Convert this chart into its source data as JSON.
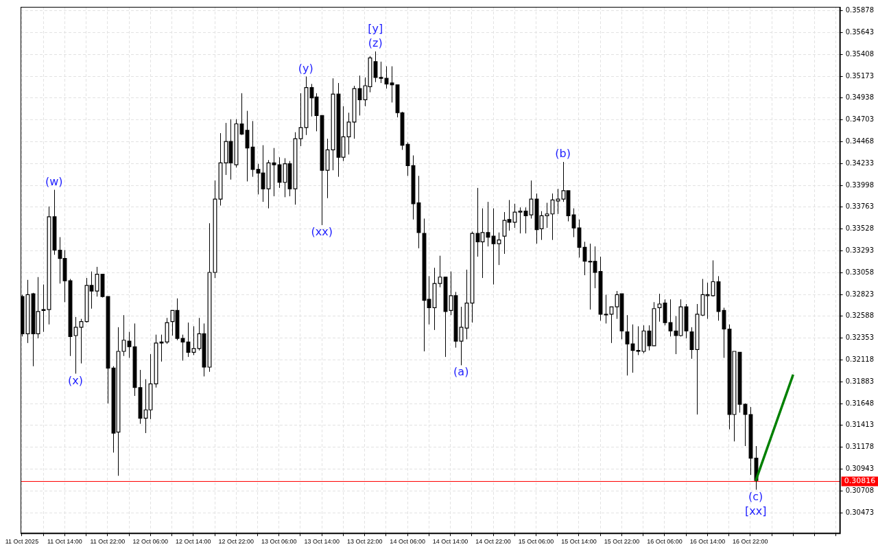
{
  "chart_data": {
    "type": "candlestick",
    "x": [
      "2025-10-11T06:00",
      "2025-10-11T07:00",
      "2025-10-11T08:00",
      "2025-10-11T09:00",
      "2025-10-11T10:00",
      "2025-10-11T11:00",
      "2025-10-11T12:00",
      "2025-10-11T13:00",
      "2025-10-11T14:00",
      "2025-10-11T15:00",
      "2025-10-11T16:00",
      "2025-10-11T17:00",
      "2025-10-11T18:00",
      "2025-10-11T19:00",
      "2025-10-11T20:00",
      "2025-10-11T21:00",
      "2025-10-11T22:00",
      "2025-10-11T23:00",
      "2025-10-12T00:00",
      "2025-10-12T01:00",
      "2025-10-12T02:00",
      "2025-10-12T03:00",
      "2025-10-12T04:00",
      "2025-10-12T05:00",
      "2025-10-12T06:00",
      "2025-10-12T07:00",
      "2025-10-12T08:00",
      "2025-10-12T09:00",
      "2025-10-12T10:00",
      "2025-10-12T11:00",
      "2025-10-12T12:00",
      "2025-10-12T13:00",
      "2025-10-12T14:00",
      "2025-10-12T15:00",
      "2025-10-12T16:00",
      "2025-10-12T17:00",
      "2025-10-12T18:00",
      "2025-10-12T19:00",
      "2025-10-12T20:00",
      "2025-10-12T21:00",
      "2025-10-12T22:00",
      "2025-10-12T23:00",
      "2025-10-13T00:00",
      "2025-10-13T01:00",
      "2025-10-13T02:00",
      "2025-10-13T03:00",
      "2025-10-13T04:00",
      "2025-10-13T05:00",
      "2025-10-13T06:00",
      "2025-10-13T07:00",
      "2025-10-13T08:00",
      "2025-10-13T09:00",
      "2025-10-13T10:00",
      "2025-10-13T11:00",
      "2025-10-13T12:00",
      "2025-10-13T13:00",
      "2025-10-13T14:00",
      "2025-10-13T15:00",
      "2025-10-13T16:00",
      "2025-10-13T17:00",
      "2025-10-13T18:00",
      "2025-10-13T19:00",
      "2025-10-13T20:00",
      "2025-10-13T21:00",
      "2025-10-13T22:00",
      "2025-10-13T23:00",
      "2025-10-14T00:00",
      "2025-10-14T01:00",
      "2025-10-14T02:00",
      "2025-10-14T03:00",
      "2025-10-14T04:00",
      "2025-10-14T05:00",
      "2025-10-14T06:00",
      "2025-10-14T07:00",
      "2025-10-14T08:00",
      "2025-10-14T09:00",
      "2025-10-14T10:00",
      "2025-10-14T11:00",
      "2025-10-14T12:00",
      "2025-10-14T13:00",
      "2025-10-14T14:00",
      "2025-10-14T15:00",
      "2025-10-14T16:00",
      "2025-10-14T17:00",
      "2025-10-14T18:00",
      "2025-10-14T19:00",
      "2025-10-14T20:00",
      "2025-10-14T21:00",
      "2025-10-14T22:00",
      "2025-10-14T23:00",
      "2025-10-15T00:00",
      "2025-10-15T01:00",
      "2025-10-15T02:00",
      "2025-10-15T03:00",
      "2025-10-15T04:00",
      "2025-10-15T05:00",
      "2025-10-15T06:00",
      "2025-10-15T07:00",
      "2025-10-15T08:00",
      "2025-10-15T09:00",
      "2025-10-15T10:00",
      "2025-10-15T11:00",
      "2025-10-15T12:00",
      "2025-10-15T13:00",
      "2025-10-15T14:00",
      "2025-10-15T15:00",
      "2025-10-15T16:00",
      "2025-10-15T17:00",
      "2025-10-15T18:00",
      "2025-10-15T19:00",
      "2025-10-15T20:00",
      "2025-10-15T21:00",
      "2025-10-15T22:00",
      "2025-10-15T23:00",
      "2025-10-16T00:00",
      "2025-10-16T01:00",
      "2025-10-16T02:00",
      "2025-10-16T03:00",
      "2025-10-16T04:00",
      "2025-10-16T05:00",
      "2025-10-16T06:00",
      "2025-10-16T07:00",
      "2025-10-16T08:00",
      "2025-10-16T09:00",
      "2025-10-16T10:00",
      "2025-10-16T11:00",
      "2025-10-16T12:00",
      "2025-10-16T13:00",
      "2025-10-16T14:00",
      "2025-10-16T15:00",
      "2025-10-16T16:00",
      "2025-10-16T17:00",
      "2025-10-16T18:00",
      "2025-10-16T19:00",
      "2025-10-16T20:00",
      "2025-10-16T21:00",
      "2025-10-16T22:00",
      "2025-10-16T23:00"
    ],
    "ohlc": [
      [
        0.328,
        0.3282,
        0.3237,
        0.324
      ],
      [
        0.324,
        0.3298,
        0.323,
        0.3282
      ],
      [
        0.3283,
        0.3284,
        0.3205,
        0.324
      ],
      [
        0.324,
        0.3301,
        0.3235,
        0.3264
      ],
      [
        0.3265,
        0.3293,
        0.3242,
        0.3266
      ],
      [
        0.3266,
        0.3377,
        0.325,
        0.3366
      ],
      [
        0.3366,
        0.3395,
        0.3325,
        0.333
      ],
      [
        0.333,
        0.3344,
        0.3294,
        0.3321
      ],
      [
        0.3321,
        0.333,
        0.3274,
        0.3297
      ],
      [
        0.3297,
        0.3299,
        0.3216,
        0.3237
      ],
      [
        0.3238,
        0.3258,
        0.3197,
        0.3247
      ],
      [
        0.3247,
        0.3256,
        0.3208,
        0.3253
      ],
      [
        0.3253,
        0.33,
        0.3252,
        0.3292
      ],
      [
        0.3292,
        0.3307,
        0.3267,
        0.3286
      ],
      [
        0.3286,
        0.3312,
        0.328,
        0.3304
      ],
      [
        0.3304,
        0.3304,
        0.3279,
        0.328
      ],
      [
        0.328,
        0.328,
        0.3165,
        0.3203
      ],
      [
        0.3203,
        0.3205,
        0.3112,
        0.3133
      ],
      [
        0.3134,
        0.3247,
        0.3087,
        0.3221
      ],
      [
        0.3221,
        0.326,
        0.3216,
        0.3233
      ],
      [
        0.3232,
        0.3242,
        0.3214,
        0.3226
      ],
      [
        0.3226,
        0.3251,
        0.3173,
        0.3182
      ],
      [
        0.3182,
        0.3201,
        0.3143,
        0.3149
      ],
      [
        0.3149,
        0.3191,
        0.3133,
        0.3158
      ],
      [
        0.3158,
        0.3218,
        0.3148,
        0.3186
      ],
      [
        0.3186,
        0.3239,
        0.3182,
        0.323
      ],
      [
        0.3231,
        0.3239,
        0.321,
        0.323
      ],
      [
        0.3231,
        0.3257,
        0.3229,
        0.3252
      ],
      [
        0.3253,
        0.3265,
        0.3238,
        0.3265
      ],
      [
        0.3265,
        0.3278,
        0.3233,
        0.3235
      ],
      [
        0.3235,
        0.3239,
        0.3211,
        0.3231
      ],
      [
        0.3231,
        0.3252,
        0.3215,
        0.322
      ],
      [
        0.322,
        0.3248,
        0.3217,
        0.3224
      ],
      [
        0.3224,
        0.3257,
        0.3222,
        0.324
      ],
      [
        0.324,
        0.3251,
        0.3194,
        0.3204
      ],
      [
        0.3204,
        0.3359,
        0.3199,
        0.3306
      ],
      [
        0.3306,
        0.3405,
        0.33,
        0.3385
      ],
      [
        0.3385,
        0.3456,
        0.3378,
        0.3424
      ],
      [
        0.3424,
        0.3467,
        0.3411,
        0.3447
      ],
      [
        0.3447,
        0.3471,
        0.3406,
        0.3424
      ],
      [
        0.3422,
        0.3471,
        0.3419,
        0.3466
      ],
      [
        0.3466,
        0.3499,
        0.3454,
        0.3455
      ],
      [
        0.3459,
        0.348,
        0.3404,
        0.344
      ],
      [
        0.3441,
        0.3469,
        0.3409,
        0.3417
      ],
      [
        0.3417,
        0.3423,
        0.339,
        0.3413
      ],
      [
        0.3413,
        0.3443,
        0.3382,
        0.3396
      ],
      [
        0.3396,
        0.3427,
        0.3375,
        0.3424
      ],
      [
        0.3424,
        0.344,
        0.3388,
        0.3422
      ],
      [
        0.3422,
        0.343,
        0.3397,
        0.3403
      ],
      [
        0.3403,
        0.3429,
        0.3387,
        0.3423
      ],
      [
        0.3423,
        0.3426,
        0.3388,
        0.3396
      ],
      [
        0.3396,
        0.3457,
        0.3379,
        0.345
      ],
      [
        0.345,
        0.3499,
        0.3442,
        0.3462
      ],
      [
        0.3462,
        0.3517,
        0.3454,
        0.3505
      ],
      [
        0.3505,
        0.3509,
        0.3474,
        0.3494
      ],
      [
        0.3495,
        0.3499,
        0.3458,
        0.3475
      ],
      [
        0.3475,
        0.3475,
        0.3357,
        0.3416
      ],
      [
        0.3416,
        0.345,
        0.3386,
        0.3438
      ],
      [
        0.3438,
        0.3515,
        0.3416,
        0.3498
      ],
      [
        0.3498,
        0.351,
        0.3409,
        0.343
      ],
      [
        0.343,
        0.3485,
        0.3426,
        0.3452
      ],
      [
        0.3452,
        0.3478,
        0.3433,
        0.3468
      ],
      [
        0.3468,
        0.3507,
        0.345,
        0.3504
      ],
      [
        0.3504,
        0.3518,
        0.3475,
        0.3492
      ],
      [
        0.3492,
        0.3516,
        0.3485,
        0.3507
      ],
      [
        0.3506,
        0.3539,
        0.35,
        0.3537
      ],
      [
        0.3533,
        0.3544,
        0.3511,
        0.3516
      ],
      [
        0.3516,
        0.3533,
        0.351,
        0.3515
      ],
      [
        0.3515,
        0.3528,
        0.3504,
        0.3509
      ],
      [
        0.351,
        0.3528,
        0.3489,
        0.3508
      ],
      [
        0.3508,
        0.3508,
        0.3473,
        0.3478
      ],
      [
        0.3478,
        0.3479,
        0.3438,
        0.3443
      ],
      [
        0.3444,
        0.3446,
        0.341,
        0.3421
      ],
      [
        0.3421,
        0.3432,
        0.3363,
        0.338
      ],
      [
        0.3381,
        0.341,
        0.3332,
        0.3349
      ],
      [
        0.3348,
        0.3364,
        0.3221,
        0.3276
      ],
      [
        0.3277,
        0.3302,
        0.325,
        0.3268
      ],
      [
        0.3268,
        0.3311,
        0.3244,
        0.3294
      ],
      [
        0.3294,
        0.3324,
        0.329,
        0.3301
      ],
      [
        0.3301,
        0.3301,
        0.3215,
        0.3264
      ],
      [
        0.3265,
        0.3307,
        0.326,
        0.3281
      ],
      [
        0.3281,
        0.3285,
        0.3225,
        0.3232
      ],
      [
        0.3232,
        0.3269,
        0.3206,
        0.3247
      ],
      [
        0.3246,
        0.3309,
        0.3234,
        0.3273
      ],
      [
        0.3273,
        0.335,
        0.3252,
        0.3348
      ],
      [
        0.3348,
        0.3397,
        0.3323,
        0.3339
      ],
      [
        0.3339,
        0.3375,
        0.33,
        0.3349
      ],
      [
        0.3349,
        0.3382,
        0.3334,
        0.3344
      ],
      [
        0.3345,
        0.3375,
        0.3293,
        0.3337
      ],
      [
        0.3337,
        0.3349,
        0.3314,
        0.3341
      ],
      [
        0.3345,
        0.3371,
        0.3326,
        0.3362
      ],
      [
        0.3363,
        0.3384,
        0.3351,
        0.336
      ],
      [
        0.336,
        0.338,
        0.3354,
        0.3371
      ],
      [
        0.3371,
        0.3376,
        0.3348,
        0.3372
      ],
      [
        0.3372,
        0.3376,
        0.3348,
        0.3367
      ],
      [
        0.3368,
        0.3405,
        0.3364,
        0.3385
      ],
      [
        0.3385,
        0.3391,
        0.3337,
        0.3352
      ],
      [
        0.3353,
        0.3372,
        0.3341,
        0.3367
      ],
      [
        0.3367,
        0.3381,
        0.3354,
        0.3369
      ],
      [
        0.3369,
        0.3391,
        0.3341,
        0.3384
      ],
      [
        0.3383,
        0.3396,
        0.3369,
        0.3385
      ],
      [
        0.3385,
        0.3425,
        0.3382,
        0.3394
      ],
      [
        0.3394,
        0.3394,
        0.3361,
        0.3367
      ],
      [
        0.3368,
        0.3375,
        0.3344,
        0.3354
      ],
      [
        0.3354,
        0.3363,
        0.3322,
        0.3333
      ],
      [
        0.3333,
        0.3339,
        0.3303,
        0.3318
      ],
      [
        0.3318,
        0.3337,
        0.3266,
        0.3318
      ],
      [
        0.3318,
        0.3334,
        0.3289,
        0.3306
      ],
      [
        0.3307,
        0.3323,
        0.3254,
        0.3261
      ],
      [
        0.3261,
        0.3282,
        0.3251,
        0.3261
      ],
      [
        0.3261,
        0.3269,
        0.323,
        0.3269
      ],
      [
        0.3269,
        0.3286,
        0.3256,
        0.3282
      ],
      [
        0.3283,
        0.3283,
        0.3234,
        0.3243
      ],
      [
        0.3242,
        0.326,
        0.3195,
        0.3229
      ],
      [
        0.3229,
        0.325,
        0.3198,
        0.3222
      ],
      [
        0.3222,
        0.3248,
        0.3217,
        0.3221
      ],
      [
        0.3221,
        0.3249,
        0.3219,
        0.3243
      ],
      [
        0.3243,
        0.3249,
        0.3222,
        0.3227
      ],
      [
        0.3227,
        0.3274,
        0.3227,
        0.3267
      ],
      [
        0.3268,
        0.3283,
        0.3253,
        0.3272
      ],
      [
        0.3273,
        0.3277,
        0.3249,
        0.3252
      ],
      [
        0.3252,
        0.3277,
        0.3237,
        0.3243
      ],
      [
        0.3243,
        0.3259,
        0.3218,
        0.3238
      ],
      [
        0.3238,
        0.3277,
        0.3237,
        0.3269
      ],
      [
        0.3269,
        0.3272,
        0.3235,
        0.3243
      ],
      [
        0.3242,
        0.3247,
        0.3213,
        0.3223
      ],
      [
        0.3223,
        0.3272,
        0.3153,
        0.3261
      ],
      [
        0.326,
        0.3299,
        0.3259,
        0.3282
      ],
      [
        0.3281,
        0.3295,
        0.3256,
        0.3282
      ],
      [
        0.3281,
        0.3319,
        0.328,
        0.3296
      ],
      [
        0.3296,
        0.3302,
        0.3254,
        0.3264
      ],
      [
        0.3265,
        0.3268,
        0.3214,
        0.3245
      ],
      [
        0.3245,
        0.325,
        0.3137,
        0.3153
      ],
      [
        0.3153,
        0.3221,
        0.3124,
        0.3221
      ],
      [
        0.322,
        0.322,
        0.3155,
        0.3164
      ],
      [
        0.3164,
        0.3165,
        0.3119,
        0.3153
      ],
      [
        0.3153,
        0.3161,
        0.3088,
        0.3106
      ],
      [
        0.3106,
        0.3119,
        0.3072,
        0.3082
      ]
    ],
    "series": [
      {
        "type": "line",
        "x": [
          "2025-10-16T23:00",
          "2025-10-17T06:00"
        ],
        "values": [
          0.30816,
          0.3196
        ],
        "color": "#008000"
      }
    ],
    "xlim": [
      "2025-10-11T05:45",
      "2025-10-17T14:45"
    ],
    "xticks": [
      {
        "value": "2025-10-11T06:00",
        "label": "11 Oct 2025"
      },
      {
        "value": "2025-10-11T10:00",
        "label": null
      },
      {
        "value": "2025-10-11T14:00",
        "label": "11 Oct 14:00"
      },
      {
        "value": "2025-10-11T18:00",
        "label": null
      },
      {
        "value": "2025-10-11T22:00",
        "label": "11 Oct 22:00"
      },
      {
        "value": "2025-10-12T02:00",
        "label": null
      },
      {
        "value": "2025-10-12T06:00",
        "label": "12 Oct 06:00"
      },
      {
        "value": "2025-10-12T10:00",
        "label": null
      },
      {
        "value": "2025-10-12T14:00",
        "label": "12 Oct 14:00"
      },
      {
        "value": "2025-10-12T18:00",
        "label": null
      },
      {
        "value": "2025-10-12T22:00",
        "label": "12 Oct 22:00"
      },
      {
        "value": "2025-10-13T02:00",
        "label": null
      },
      {
        "value": "2025-10-13T06:00",
        "label": "13 Oct 06:00"
      },
      {
        "value": "2025-10-13T10:00",
        "label": null
      },
      {
        "value": "2025-10-13T14:00",
        "label": "13 Oct 14:00"
      },
      {
        "value": "2025-10-13T18:00",
        "label": null
      },
      {
        "value": "2025-10-13T22:00",
        "label": "13 Oct 22:00"
      },
      {
        "value": "2025-10-14T02:00",
        "label": null
      },
      {
        "value": "2025-10-14T06:00",
        "label": "14 Oct 06:00"
      },
      {
        "value": "2025-10-14T10:00",
        "label": null
      },
      {
        "value": "2025-10-14T14:00",
        "label": "14 Oct 14:00"
      },
      {
        "value": "2025-10-14T18:00",
        "label": null
      },
      {
        "value": "2025-10-14T22:00",
        "label": "14 Oct 22:00"
      },
      {
        "value": "2025-10-15T02:00",
        "label": null
      },
      {
        "value": "2025-10-15T06:00",
        "label": "15 Oct 06:00"
      },
      {
        "value": "2025-10-15T10:00",
        "label": null
      },
      {
        "value": "2025-10-15T14:00",
        "label": "15 Oct 14:00"
      },
      {
        "value": "2025-10-15T18:00",
        "label": null
      },
      {
        "value": "2025-10-15T22:00",
        "label": "15 Oct 22:00"
      },
      {
        "value": "2025-10-16T02:00",
        "label": null
      },
      {
        "value": "2025-10-16T06:00",
        "label": "16 Oct 06:00"
      },
      {
        "value": "2025-10-16T10:00",
        "label": null
      },
      {
        "value": "2025-10-16T14:00",
        "label": "16 Oct 14:00"
      },
      {
        "value": "2025-10-16T18:00",
        "label": null
      },
      {
        "value": "2025-10-16T22:00",
        "label": "16 Oct 22:00"
      },
      {
        "value": "2025-10-17T02:00",
        "label": null
      },
      {
        "value": "2025-10-17T06:00",
        "label": null
      },
      {
        "value": "2025-10-17T10:00",
        "label": null
      },
      {
        "value": "2025-10-17T14:00",
        "label": null
      }
    ],
    "ylim": [
      0.3025,
      0.3592
    ],
    "yticks": [
      0.30473,
      0.30708,
      0.30943,
      0.31178,
      0.31413,
      0.31648,
      0.31883,
      0.32118,
      0.32353,
      0.32588,
      0.32823,
      0.33058,
      0.33293,
      0.33528,
      0.33763,
      0.33998,
      0.34233,
      0.34468,
      0.34703,
      0.34938,
      0.35173,
      0.35408,
      0.35643,
      0.35878
    ],
    "grid": true,
    "ref_lines": [
      {
        "axis": "y",
        "value": 0.30816,
        "label": "0.30816",
        "color": "#ff0000"
      }
    ],
    "annotations": [
      {
        "text": "(w)",
        "x": "2025-10-11T12:00",
        "y": 0.3395
      },
      {
        "text": "(x)",
        "x": "2025-10-11T16:00",
        "y": 0.3197
      },
      {
        "text": "(y)",
        "x": "2025-10-13T11:00",
        "y": 0.3517
      },
      {
        "text": "(xx)",
        "x": "2025-10-13T14:00",
        "y": 0.3357
      },
      {
        "text": "(z)",
        "x": "2025-10-14T00:00",
        "y": 0.3544
      },
      {
        "text": "[y]",
        "x": "2025-10-14T00:00",
        "y": 0.3544
      },
      {
        "text": "(a)",
        "x": "2025-10-14T16:00",
        "y": 0.3206
      },
      {
        "text": "(b)",
        "x": "2025-10-15T11:00",
        "y": 0.3425
      },
      {
        "text": "(c)",
        "x": "2025-10-16T23:00",
        "y": 0.3072
      },
      {
        "text": "[xx]",
        "x": "2025-10-16T23:00",
        "y": 0.3072
      }
    ]
  }
}
